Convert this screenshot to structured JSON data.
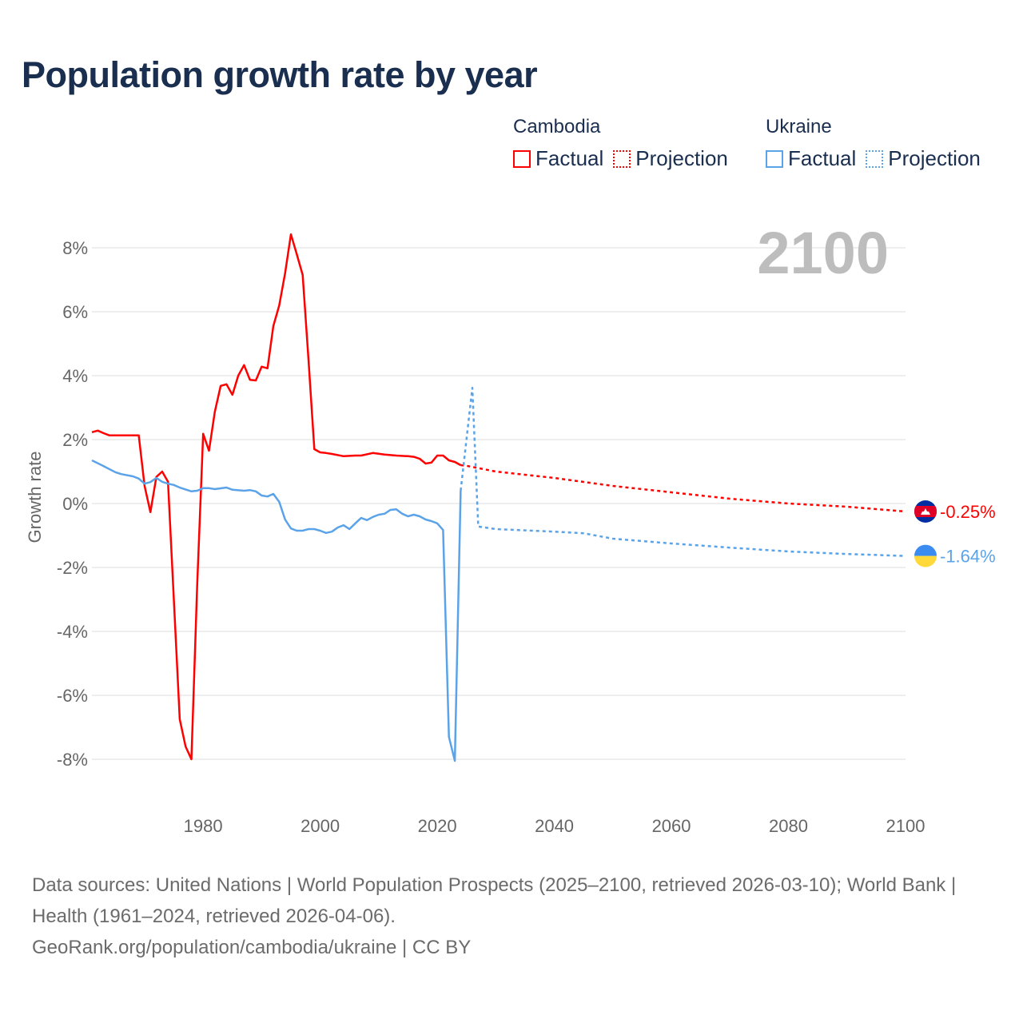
{
  "title": "Population growth rate by year",
  "legend": {
    "groups": [
      {
        "name": "Cambodia",
        "color": "#ff0000",
        "factual": "Factual",
        "projection": "Projection"
      },
      {
        "name": "Ukraine",
        "color": "#5ba3e8",
        "factual": "Factual",
        "projection": "Projection"
      }
    ]
  },
  "year_overlay": "2100",
  "chart_data": {
    "type": "line",
    "title": "Population growth rate by year",
    "xlabel": "",
    "ylabel": "Growth rate",
    "xlim": [
      1961,
      2100
    ],
    "ylim": [
      -9.5,
      9.5
    ],
    "x_ticks": [
      1980,
      2000,
      2020,
      2040,
      2060,
      2080,
      2100
    ],
    "x_tick_labels": [
      "1980",
      "2000",
      "2020",
      "2040",
      "2060",
      "2080",
      "2100"
    ],
    "y_ticks": [
      8,
      6,
      4,
      2,
      0,
      -2,
      -4,
      -6,
      -8
    ],
    "y_tick_labels": [
      "8%",
      "6%",
      "4%",
      "2%",
      "0%",
      "-2%",
      "-4%",
      "-6%",
      "-8%"
    ],
    "grid": true,
    "legend_position": "top-right",
    "series": [
      {
        "name": "Cambodia Factual",
        "color": "#ff0000",
        "dashed": false,
        "x": [
          1961,
          1962,
          1963,
          1964,
          1965,
          1966,
          1967,
          1968,
          1969,
          1970,
          1971,
          1972,
          1973,
          1974,
          1975,
          1976,
          1977,
          1978,
          1979,
          1980,
          1981,
          1982,
          1983,
          1984,
          1985,
          1986,
          1987,
          1988,
          1989,
          1990,
          1991,
          1992,
          1993,
          1994,
          1995,
          1996,
          1997,
          1998,
          1999,
          2000,
          2001,
          2002,
          2004,
          2006,
          2007,
          2009,
          2011,
          2013,
          2015,
          2016,
          2017,
          2018,
          2019,
          2020,
          2021,
          2022,
          2023,
          2024
        ],
        "y": [
          2.23,
          2.28,
          2.2,
          2.13,
          2.13,
          2.13,
          2.13,
          2.13,
          2.13,
          0.55,
          -0.27,
          0.83,
          1.0,
          0.68,
          -3.0,
          -6.75,
          -7.6,
          -8.0,
          -2.5,
          2.18,
          1.65,
          2.87,
          3.68,
          3.73,
          3.4,
          4.0,
          4.33,
          3.87,
          3.85,
          4.28,
          4.23,
          5.55,
          6.2,
          7.2,
          8.42,
          7.8,
          7.15,
          4.5,
          1.7,
          1.6,
          1.58,
          1.55,
          1.48,
          1.5,
          1.5,
          1.58,
          1.53,
          1.5,
          1.48,
          1.46,
          1.4,
          1.25,
          1.28,
          1.5,
          1.5,
          1.35,
          1.3,
          1.2
        ]
      },
      {
        "name": "Cambodia Projection",
        "color": "#ff0000",
        "dashed": true,
        "x": [
          2024,
          2025,
          2030,
          2040,
          2050,
          2060,
          2070,
          2080,
          2090,
          2100
        ],
        "y": [
          1.2,
          1.18,
          1.0,
          0.8,
          0.55,
          0.35,
          0.15,
          0.0,
          -0.1,
          -0.25
        ]
      },
      {
        "name": "Ukraine Factual",
        "color": "#5ba3e8",
        "dashed": false,
        "x": [
          1961,
          1963,
          1965,
          1966,
          1968,
          1969,
          1970,
          1971,
          1972,
          1973,
          1974,
          1975,
          1976,
          1978,
          1979,
          1980,
          1981,
          1982,
          1984,
          1985,
          1987,
          1988,
          1989,
          1990,
          1991,
          1992,
          1993,
          1994,
          1995,
          1996,
          1997,
          1998,
          1999,
          2000,
          2001,
          2002,
          2003,
          2004,
          2005,
          2006,
          2007,
          2008,
          2009,
          2010,
          2011,
          2012,
          2013,
          2014,
          2015,
          2016,
          2017,
          2018,
          2019,
          2020,
          2021,
          2022,
          2023,
          2024
        ],
        "y": [
          1.35,
          1.17,
          0.98,
          0.92,
          0.85,
          0.78,
          0.62,
          0.67,
          0.8,
          0.68,
          0.62,
          0.58,
          0.5,
          0.38,
          0.4,
          0.48,
          0.48,
          0.45,
          0.5,
          0.43,
          0.4,
          0.42,
          0.38,
          0.25,
          0.22,
          0.3,
          0.05,
          -0.5,
          -0.78,
          -0.85,
          -0.85,
          -0.8,
          -0.8,
          -0.85,
          -0.92,
          -0.88,
          -0.75,
          -0.68,
          -0.8,
          -0.62,
          -0.45,
          -0.52,
          -0.42,
          -0.35,
          -0.32,
          -0.2,
          -0.18,
          -0.32,
          -0.4,
          -0.35,
          -0.4,
          -0.5,
          -0.55,
          -0.62,
          -0.83,
          -7.3,
          -8.05,
          0.4
        ]
      },
      {
        "name": "Ukraine Projection",
        "color": "#5ba3e8",
        "dashed": true,
        "x": [
          2024,
          2026,
          2027,
          2030,
          2040,
          2045,
          2050,
          2060,
          2070,
          2080,
          2090,
          2100
        ],
        "y": [
          0.4,
          3.62,
          -0.72,
          -0.8,
          -0.88,
          -0.93,
          -1.1,
          -1.25,
          -1.38,
          -1.5,
          -1.58,
          -1.64
        ]
      }
    ],
    "end_labels": [
      {
        "country": "Cambodia",
        "value": -0.25,
        "label": "-0.25%",
        "color": "#ff0000"
      },
      {
        "country": "Ukraine",
        "value": -1.64,
        "label": "-1.64%",
        "color": "#5ba3e8"
      }
    ]
  },
  "footer": {
    "sources": "Data sources: United Nations | World Population Prospects (2025–2100, retrieved 2026-03-10); World Bank | Health (1961–2024, retrieved 2026-04-06).",
    "credit": "GeoRank.org/population/cambodia/ukraine | CC BY"
  }
}
